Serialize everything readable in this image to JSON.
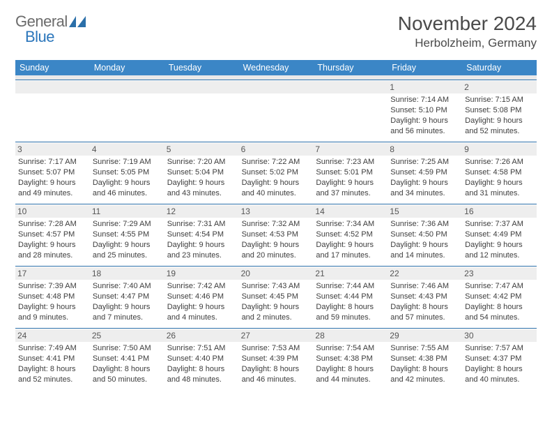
{
  "logo": {
    "general": "General",
    "blue": "Blue"
  },
  "colors": {
    "accent": "#3b86c6",
    "week_border": "#2b6fa9",
    "daynum_bg": "#eeeeee",
    "text": "#3d3d3d",
    "header_text": "#4a4a4a"
  },
  "title": "November 2024",
  "location": "Herbolzheim, Germany",
  "dow": [
    "Sunday",
    "Monday",
    "Tuesday",
    "Wednesday",
    "Thursday",
    "Friday",
    "Saturday"
  ],
  "weeks": [
    [
      {
        "n": ""
      },
      {
        "n": ""
      },
      {
        "n": ""
      },
      {
        "n": ""
      },
      {
        "n": ""
      },
      {
        "n": "1",
        "sr": "Sunrise: 7:14 AM",
        "ss": "Sunset: 5:10 PM",
        "d1": "Daylight: 9 hours",
        "d2": "and 56 minutes."
      },
      {
        "n": "2",
        "sr": "Sunrise: 7:15 AM",
        "ss": "Sunset: 5:08 PM",
        "d1": "Daylight: 9 hours",
        "d2": "and 52 minutes."
      }
    ],
    [
      {
        "n": "3",
        "sr": "Sunrise: 7:17 AM",
        "ss": "Sunset: 5:07 PM",
        "d1": "Daylight: 9 hours",
        "d2": "and 49 minutes."
      },
      {
        "n": "4",
        "sr": "Sunrise: 7:19 AM",
        "ss": "Sunset: 5:05 PM",
        "d1": "Daylight: 9 hours",
        "d2": "and 46 minutes."
      },
      {
        "n": "5",
        "sr": "Sunrise: 7:20 AM",
        "ss": "Sunset: 5:04 PM",
        "d1": "Daylight: 9 hours",
        "d2": "and 43 minutes."
      },
      {
        "n": "6",
        "sr": "Sunrise: 7:22 AM",
        "ss": "Sunset: 5:02 PM",
        "d1": "Daylight: 9 hours",
        "d2": "and 40 minutes."
      },
      {
        "n": "7",
        "sr": "Sunrise: 7:23 AM",
        "ss": "Sunset: 5:01 PM",
        "d1": "Daylight: 9 hours",
        "d2": "and 37 minutes."
      },
      {
        "n": "8",
        "sr": "Sunrise: 7:25 AM",
        "ss": "Sunset: 4:59 PM",
        "d1": "Daylight: 9 hours",
        "d2": "and 34 minutes."
      },
      {
        "n": "9",
        "sr": "Sunrise: 7:26 AM",
        "ss": "Sunset: 4:58 PM",
        "d1": "Daylight: 9 hours",
        "d2": "and 31 minutes."
      }
    ],
    [
      {
        "n": "10",
        "sr": "Sunrise: 7:28 AM",
        "ss": "Sunset: 4:57 PM",
        "d1": "Daylight: 9 hours",
        "d2": "and 28 minutes."
      },
      {
        "n": "11",
        "sr": "Sunrise: 7:29 AM",
        "ss": "Sunset: 4:55 PM",
        "d1": "Daylight: 9 hours",
        "d2": "and 25 minutes."
      },
      {
        "n": "12",
        "sr": "Sunrise: 7:31 AM",
        "ss": "Sunset: 4:54 PM",
        "d1": "Daylight: 9 hours",
        "d2": "and 23 minutes."
      },
      {
        "n": "13",
        "sr": "Sunrise: 7:32 AM",
        "ss": "Sunset: 4:53 PM",
        "d1": "Daylight: 9 hours",
        "d2": "and 20 minutes."
      },
      {
        "n": "14",
        "sr": "Sunrise: 7:34 AM",
        "ss": "Sunset: 4:52 PM",
        "d1": "Daylight: 9 hours",
        "d2": "and 17 minutes."
      },
      {
        "n": "15",
        "sr": "Sunrise: 7:36 AM",
        "ss": "Sunset: 4:50 PM",
        "d1": "Daylight: 9 hours",
        "d2": "and 14 minutes."
      },
      {
        "n": "16",
        "sr": "Sunrise: 7:37 AM",
        "ss": "Sunset: 4:49 PM",
        "d1": "Daylight: 9 hours",
        "d2": "and 12 minutes."
      }
    ],
    [
      {
        "n": "17",
        "sr": "Sunrise: 7:39 AM",
        "ss": "Sunset: 4:48 PM",
        "d1": "Daylight: 9 hours",
        "d2": "and 9 minutes."
      },
      {
        "n": "18",
        "sr": "Sunrise: 7:40 AM",
        "ss": "Sunset: 4:47 PM",
        "d1": "Daylight: 9 hours",
        "d2": "and 7 minutes."
      },
      {
        "n": "19",
        "sr": "Sunrise: 7:42 AM",
        "ss": "Sunset: 4:46 PM",
        "d1": "Daylight: 9 hours",
        "d2": "and 4 minutes."
      },
      {
        "n": "20",
        "sr": "Sunrise: 7:43 AM",
        "ss": "Sunset: 4:45 PM",
        "d1": "Daylight: 9 hours",
        "d2": "and 2 minutes."
      },
      {
        "n": "21",
        "sr": "Sunrise: 7:44 AM",
        "ss": "Sunset: 4:44 PM",
        "d1": "Daylight: 8 hours",
        "d2": "and 59 minutes."
      },
      {
        "n": "22",
        "sr": "Sunrise: 7:46 AM",
        "ss": "Sunset: 4:43 PM",
        "d1": "Daylight: 8 hours",
        "d2": "and 57 minutes."
      },
      {
        "n": "23",
        "sr": "Sunrise: 7:47 AM",
        "ss": "Sunset: 4:42 PM",
        "d1": "Daylight: 8 hours",
        "d2": "and 54 minutes."
      }
    ],
    [
      {
        "n": "24",
        "sr": "Sunrise: 7:49 AM",
        "ss": "Sunset: 4:41 PM",
        "d1": "Daylight: 8 hours",
        "d2": "and 52 minutes."
      },
      {
        "n": "25",
        "sr": "Sunrise: 7:50 AM",
        "ss": "Sunset: 4:41 PM",
        "d1": "Daylight: 8 hours",
        "d2": "and 50 minutes."
      },
      {
        "n": "26",
        "sr": "Sunrise: 7:51 AM",
        "ss": "Sunset: 4:40 PM",
        "d1": "Daylight: 8 hours",
        "d2": "and 48 minutes."
      },
      {
        "n": "27",
        "sr": "Sunrise: 7:53 AM",
        "ss": "Sunset: 4:39 PM",
        "d1": "Daylight: 8 hours",
        "d2": "and 46 minutes."
      },
      {
        "n": "28",
        "sr": "Sunrise: 7:54 AM",
        "ss": "Sunset: 4:38 PM",
        "d1": "Daylight: 8 hours",
        "d2": "and 44 minutes."
      },
      {
        "n": "29",
        "sr": "Sunrise: 7:55 AM",
        "ss": "Sunset: 4:38 PM",
        "d1": "Daylight: 8 hours",
        "d2": "and 42 minutes."
      },
      {
        "n": "30",
        "sr": "Sunrise: 7:57 AM",
        "ss": "Sunset: 4:37 PM",
        "d1": "Daylight: 8 hours",
        "d2": "and 40 minutes."
      }
    ]
  ]
}
